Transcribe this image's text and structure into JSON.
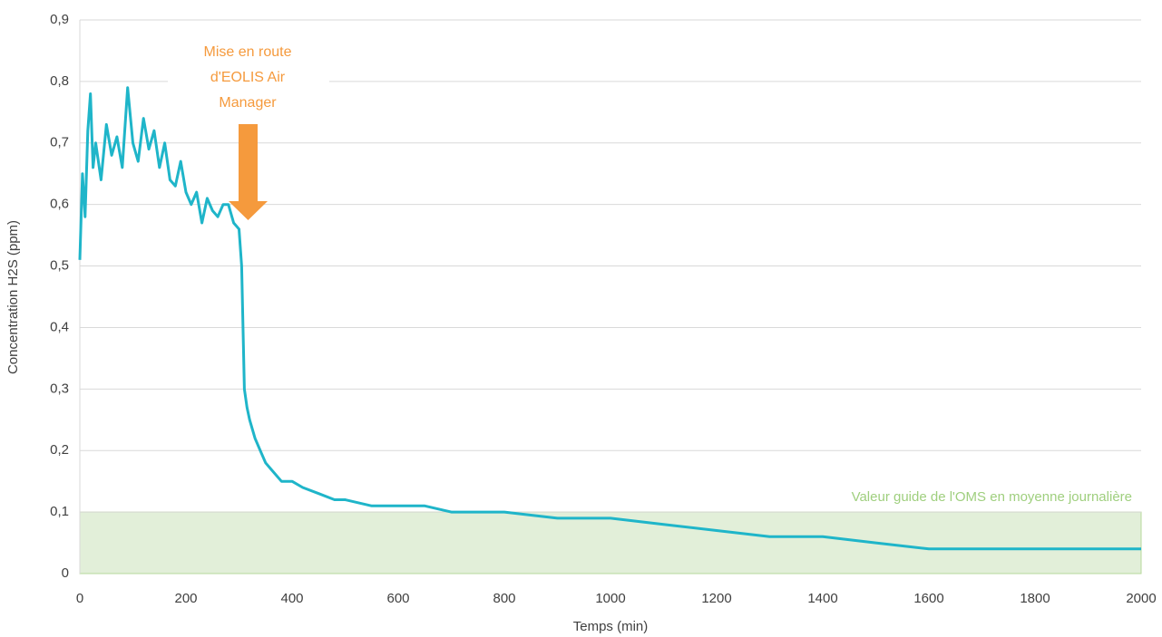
{
  "chart_data": {
    "type": "line",
    "x": [
      0,
      5,
      10,
      15,
      20,
      25,
      30,
      40,
      50,
      60,
      70,
      80,
      90,
      100,
      110,
      120,
      130,
      140,
      150,
      160,
      170,
      180,
      190,
      200,
      210,
      220,
      230,
      240,
      250,
      260,
      270,
      280,
      290,
      300,
      305,
      310,
      315,
      320,
      330,
      340,
      350,
      360,
      380,
      400,
      420,
      450,
      480,
      500,
      550,
      600,
      650,
      700,
      750,
      800,
      900,
      1000,
      1100,
      1200,
      1300,
      1400,
      1500,
      1600,
      1700,
      1800,
      1900,
      2000
    ],
    "values": [
      0.51,
      0.65,
      0.58,
      0.72,
      0.78,
      0.66,
      0.7,
      0.64,
      0.73,
      0.68,
      0.71,
      0.66,
      0.79,
      0.7,
      0.67,
      0.74,
      0.69,
      0.72,
      0.66,
      0.7,
      0.64,
      0.63,
      0.67,
      0.62,
      0.6,
      0.62,
      0.57,
      0.61,
      0.59,
      0.58,
      0.6,
      0.6,
      0.57,
      0.56,
      0.5,
      0.3,
      0.27,
      0.25,
      0.22,
      0.2,
      0.18,
      0.17,
      0.15,
      0.15,
      0.14,
      0.13,
      0.12,
      0.12,
      0.11,
      0.11,
      0.11,
      0.1,
      0.1,
      0.1,
      0.09,
      0.09,
      0.08,
      0.07,
      0.06,
      0.06,
      0.05,
      0.04,
      0.04,
      0.04,
      0.04,
      0.04
    ],
    "color": "#1fb5c9",
    "x_label": "Temps (min)",
    "y_label": "Concentration H2S (ppm)",
    "xlim": [
      0,
      2000
    ],
    "xticks": [
      0,
      200,
      400,
      600,
      800,
      1000,
      1200,
      1400,
      1600,
      1800,
      2000
    ],
    "ylim": [
      0,
      0.9
    ],
    "yticks": [
      0,
      {
        "value": 0.1,
        "label": "0,1"
      },
      {
        "value": 0.2,
        "label": "0,2"
      },
      {
        "value": 0.3,
        "label": "0,3"
      },
      {
        "value": 0.4,
        "label": "0,4"
      },
      {
        "value": 0.5,
        "label": "0,5"
      },
      {
        "value": 0.6,
        "label": "0,6"
      },
      {
        "value": 0.7,
        "label": "0,7"
      },
      {
        "value": 0.8,
        "label": "0,8"
      },
      {
        "value": 0.9,
        "label": "0,9"
      }
    ],
    "grid": true,
    "guide_band": {
      "value": 0.1,
      "label": "Valeur guide de l'OMS en moyenne journalière",
      "color": "#e2efd9"
    },
    "annotation": {
      "lines": [
        "Mise en route",
        "d'EOLIS Air",
        "Manager"
      ],
      "color": "#f59a3d"
    }
  }
}
